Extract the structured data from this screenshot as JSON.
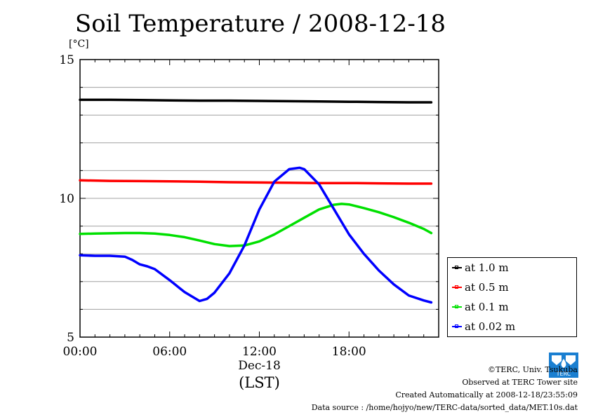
{
  "chart_data": {
    "type": "line",
    "title": "Soil Temperature / 2008-12-18",
    "ylabel": "[°C]",
    "ylim": [
      5,
      15
    ],
    "yticks": [
      5,
      10,
      15
    ],
    "xlim": [
      0,
      24
    ],
    "xticks": [
      {
        "value": 0,
        "label": "00:00"
      },
      {
        "value": 6,
        "label": "06:00"
      },
      {
        "value": 12,
        "label": "12:00"
      },
      {
        "value": 18,
        "label": "18:00"
      }
    ],
    "xsublabel": "Dec-18",
    "xunit": "(LST)",
    "grid": true,
    "legend_position": "right",
    "series": [
      {
        "name": "at 1.0 m",
        "color": "#000000",
        "x": [
          0,
          2,
          4,
          6,
          8,
          10,
          12,
          14,
          16,
          18,
          20,
          22,
          23.5
        ],
        "y": [
          13.55,
          13.55,
          13.54,
          13.53,
          13.52,
          13.52,
          13.51,
          13.5,
          13.49,
          13.48,
          13.47,
          13.46,
          13.46
        ]
      },
      {
        "name": "at 0.5 m",
        "color": "#ff0000",
        "x": [
          0,
          2,
          4,
          6,
          8,
          10,
          12,
          14,
          16,
          18,
          20,
          22,
          23.5
        ],
        "y": [
          10.65,
          10.63,
          10.62,
          10.61,
          10.6,
          10.58,
          10.57,
          10.56,
          10.55,
          10.55,
          10.54,
          10.53,
          10.53
        ]
      },
      {
        "name": "at 0.1 m",
        "color": "#00e000",
        "x": [
          0,
          1,
          2,
          3,
          4,
          5,
          6,
          7,
          8,
          9,
          10,
          11,
          12,
          13,
          14,
          15,
          16,
          17,
          17.5,
          18,
          19,
          20,
          21,
          22,
          23,
          23.5
        ],
        "y": [
          8.72,
          8.73,
          8.74,
          8.75,
          8.75,
          8.73,
          8.68,
          8.6,
          8.48,
          8.35,
          8.28,
          8.3,
          8.45,
          8.7,
          9.0,
          9.3,
          9.6,
          9.77,
          9.8,
          9.78,
          9.65,
          9.5,
          9.32,
          9.12,
          8.9,
          8.75
        ]
      },
      {
        "name": "at 0.02 m",
        "color": "#0000ff",
        "x": [
          0,
          1,
          2,
          3,
          3.5,
          4,
          4.5,
          5,
          6,
          7,
          8,
          8.5,
          9,
          10,
          11,
          12,
          13,
          14,
          14.7,
          15,
          16,
          17,
          18,
          19,
          20,
          21,
          22,
          23,
          23.5
        ],
        "y": [
          7.95,
          7.93,
          7.93,
          7.9,
          7.78,
          7.62,
          7.55,
          7.45,
          7.05,
          6.62,
          6.3,
          6.38,
          6.6,
          7.3,
          8.3,
          9.6,
          10.6,
          11.05,
          11.1,
          11.05,
          10.5,
          9.6,
          8.7,
          8.0,
          7.4,
          6.9,
          6.5,
          6.32,
          6.25
        ]
      }
    ]
  },
  "credits": {
    "copyright": "©TERC, Univ. Tsukuba",
    "site": "Observed at TERC Tower site",
    "created": "Created Automatically at 2008-12-18/23:55:09",
    "source": "Data source : /home/hojyo/new/TERC-data/sorted_data/MET.10s.dat"
  },
  "logo": {
    "text": "TERC",
    "color": "#1a7fd1"
  }
}
